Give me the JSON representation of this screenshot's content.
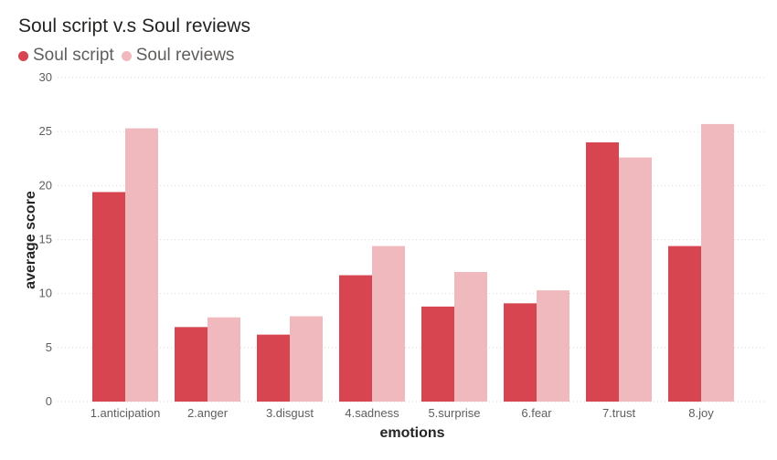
{
  "chart_data": {
    "type": "bar",
    "title": "Soul script v.s Soul reviews",
    "xlabel": "emotions",
    "ylabel": "average score",
    "ylim": [
      0,
      30
    ],
    "yticks": [
      0,
      5,
      10,
      15,
      20,
      25,
      30
    ],
    "grid": true,
    "legend_position": "top-left",
    "categories": [
      "1.anticipation",
      "2.anger",
      "3.disgust",
      "4.sadness",
      "5.surprise",
      "6.fear",
      "7.trust",
      "8.joy"
    ],
    "series": [
      {
        "name": "Soul script",
        "color": "#d64550",
        "values": [
          19.4,
          6.9,
          6.2,
          11.7,
          8.8,
          9.1,
          24.0,
          14.4
        ]
      },
      {
        "name": "Soul reviews",
        "color": "#efb9bd",
        "values": [
          25.3,
          7.8,
          7.9,
          14.4,
          12.0,
          10.3,
          22.6,
          25.7
        ]
      }
    ]
  }
}
